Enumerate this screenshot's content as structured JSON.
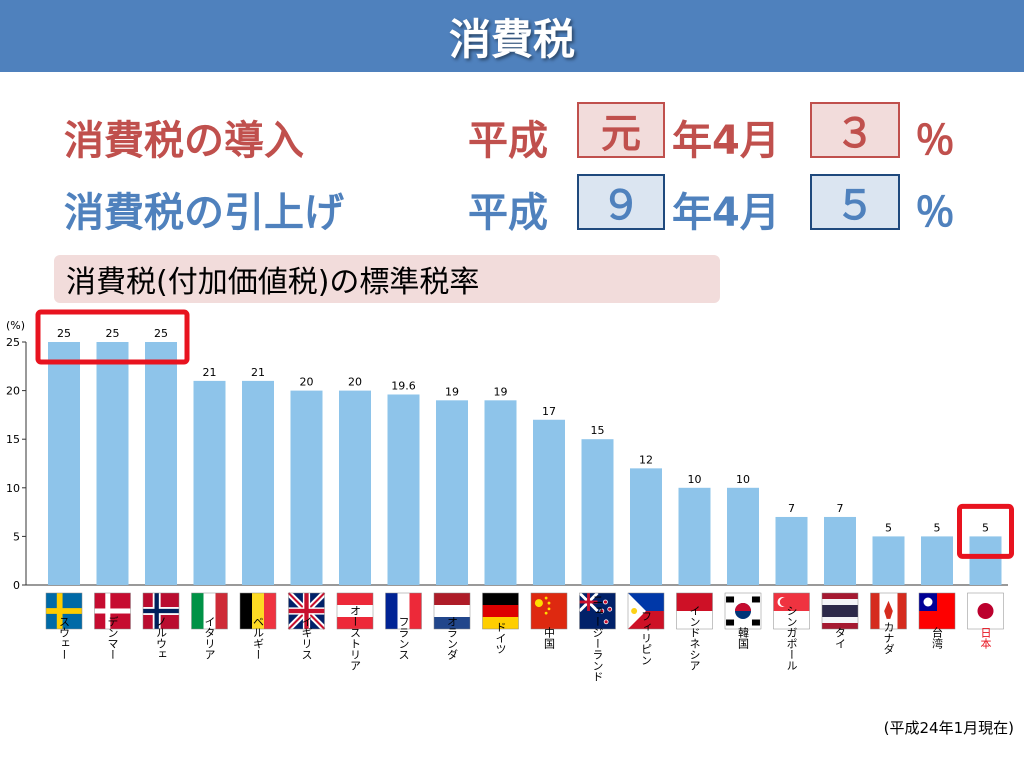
{
  "header": {
    "title": "消費税"
  },
  "introduction": {
    "label": "消費税の導入",
    "era": "平成",
    "year": "元",
    "month_text": "年4月",
    "rate": "３",
    "percent": "％"
  },
  "increase": {
    "label": "消費税の引上げ",
    "era": "平成",
    "year": "９",
    "month_text": "年4月",
    "rate": "５",
    "percent": "％"
  },
  "subtitle": "消費税(付加価値税)の標準税率",
  "note": "(平成24年1月現在)",
  "colors": {
    "bar": "#8ec4ea",
    "highlight": "#e8131f",
    "japan_label": "#e8131f"
  },
  "chart_data": {
    "type": "bar",
    "title": "",
    "unit_label": "(%)",
    "ylim": [
      0,
      25
    ],
    "yticks": [
      0,
      5,
      10,
      15,
      20,
      25
    ],
    "grid": false,
    "categories": [
      "スウェー",
      "デンマー",
      "ノルウェ",
      "イタリア",
      "ベルギー",
      "イギリス",
      "オーストリア",
      "フランス",
      "オランダ",
      "ドイツ",
      "中国",
      "ニュージーランド",
      "フィリピン",
      "インドネシア",
      "韓国",
      "シンガポール",
      "タイ",
      "カナダ",
      "台湾",
      "日本"
    ],
    "values": [
      25,
      25,
      25,
      21,
      21,
      20,
      20,
      19.6,
      19,
      19,
      17,
      15,
      12,
      10,
      10,
      7,
      7,
      5,
      5,
      5
    ],
    "value_labels": [
      "25",
      "25",
      "25",
      "21",
      "21",
      "20",
      "20",
      "19.6",
      "19",
      "19",
      "17",
      "15",
      "12",
      "10",
      "10",
      "7",
      "7",
      "5",
      "5",
      "5"
    ],
    "flags": [
      "sweden-flag",
      "denmark-flag",
      "norway-flag",
      "italy-flag",
      "belgium-flag",
      "uk-flag",
      "austria-flag",
      "france-flag",
      "netherlands-flag",
      "germany-flag",
      "china-flag",
      "new-zealand-flag",
      "philippines-flag",
      "indonesia-flag",
      "korea-flag",
      "singapore-flag",
      "thailand-flag",
      "canada-flag",
      "taiwan-flag",
      "japan-flag"
    ],
    "highlighted": [
      "スウェー",
      "デンマー",
      "ノルウェ",
      "日本"
    ]
  }
}
